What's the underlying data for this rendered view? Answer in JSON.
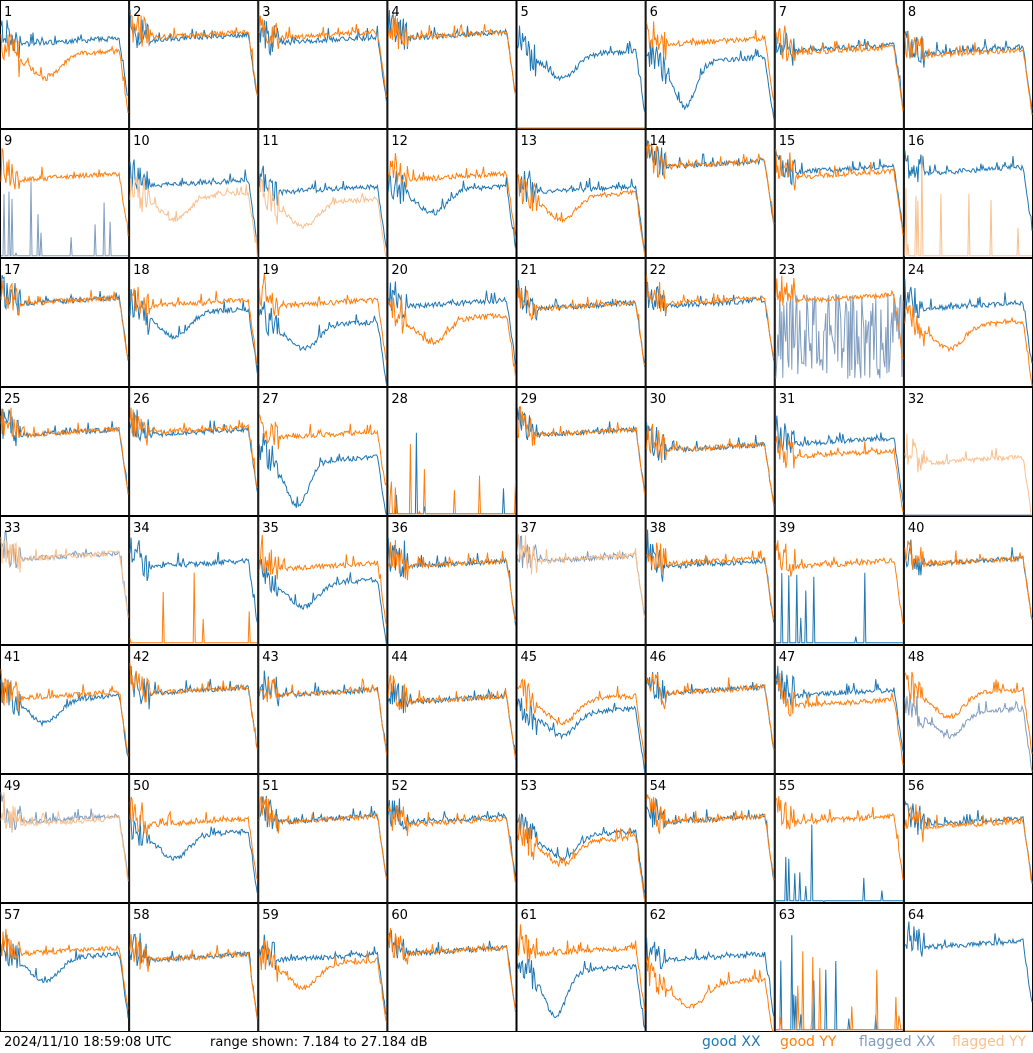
{
  "footer": {
    "timestamp": "2024/11/10 18:59:08 UTC",
    "range_text": "range shown: 7.184 to 27.184 dB"
  },
  "legend": [
    {
      "key": "good_xx",
      "label": "good XX",
      "color": "#1f77b4"
    },
    {
      "key": "good_yy",
      "label": "good YY",
      "color": "#ff7f0e"
    },
    {
      "key": "flagged_xx",
      "label": "flagged XX",
      "color": "#7f9cbf"
    },
    {
      "key": "flagged_yy",
      "label": "flagged YY",
      "color": "#f9c08d"
    }
  ],
  "chart_data": {
    "type": "line",
    "layout": "8x8 small multiples",
    "ylim_db": [
      7.184,
      27.184
    ],
    "panels": [
      {
        "id": "1",
        "xx": "good",
        "yy": "good",
        "xx_shape": "flat",
        "yy_shape": "dip",
        "xx_level": 0.65,
        "yy_level": 0.55
      },
      {
        "id": "2",
        "xx": "good",
        "yy": "good",
        "xx_shape": "flat",
        "yy_shape": "flat",
        "xx_level": 0.68,
        "yy_level": 0.7
      },
      {
        "id": "3",
        "xx": "good",
        "yy": "good",
        "xx_shape": "flat",
        "yy_shape": "flat",
        "xx_level": 0.66,
        "yy_level": 0.7
      },
      {
        "id": "4",
        "xx": "good",
        "yy": "good",
        "xx_shape": "flat",
        "yy_shape": "flat",
        "xx_level": 0.7,
        "yy_level": 0.7
      },
      {
        "id": "5",
        "xx": "good",
        "yy": "good",
        "xx_shape": "dip",
        "yy_shape": "zero",
        "xx_level": 0.55,
        "yy_level": 0
      },
      {
        "id": "6",
        "xx": "good",
        "yy": "good",
        "xx_shape": "deepdip",
        "yy_shape": "flat",
        "xx_level": 0.5,
        "yy_level": 0.65
      },
      {
        "id": "7",
        "xx": "good",
        "yy": "good",
        "xx_shape": "flat",
        "yy_shape": "flat",
        "xx_level": 0.6,
        "yy_level": 0.58
      },
      {
        "id": "8",
        "xx": "good",
        "yy": "good",
        "xx_shape": "flat",
        "yy_shape": "flat",
        "xx_level": 0.58,
        "yy_level": 0.56
      },
      {
        "id": "9",
        "xx": "flagged",
        "yy": "good",
        "xx_shape": "spikes",
        "yy_shape": "flat",
        "xx_level": 0.05,
        "yy_level": 0.6
      },
      {
        "id": "10",
        "xx": "good",
        "yy": "flagged",
        "xx_shape": "flat",
        "yy_shape": "dip",
        "xx_level": 0.55,
        "yy_level": 0.45
      },
      {
        "id": "11",
        "xx": "good",
        "yy": "flagged",
        "xx_shape": "flat",
        "yy_shape": "dip",
        "xx_level": 0.5,
        "yy_level": 0.4
      },
      {
        "id": "12",
        "xx": "good",
        "yy": "good",
        "xx_shape": "dip",
        "yy_shape": "flat",
        "xx_level": 0.5,
        "yy_level": 0.6
      },
      {
        "id": "13",
        "xx": "good",
        "yy": "good",
        "xx_shape": "flat",
        "yy_shape": "dip",
        "xx_level": 0.5,
        "yy_level": 0.45
      },
      {
        "id": "14",
        "xx": "good",
        "yy": "good",
        "xx_shape": "flat",
        "yy_shape": "flat",
        "xx_level": 0.7,
        "yy_level": 0.7
      },
      {
        "id": "15",
        "xx": "good",
        "yy": "good",
        "xx_shape": "flat",
        "yy_shape": "flat",
        "xx_level": 0.66,
        "yy_level": 0.62
      },
      {
        "id": "16",
        "xx": "good",
        "yy": "flagged",
        "xx_shape": "flat",
        "yy_shape": "spikes",
        "xx_level": 0.65,
        "yy_level": 0.02
      },
      {
        "id": "17",
        "xx": "good",
        "yy": "good",
        "xx_shape": "flat",
        "yy_shape": "flat",
        "xx_level": 0.64,
        "yy_level": 0.64
      },
      {
        "id": "18",
        "xx": "good",
        "yy": "good",
        "xx_shape": "dip",
        "yy_shape": "flat",
        "xx_level": 0.55,
        "yy_level": 0.62
      },
      {
        "id": "19",
        "xx": "good",
        "yy": "good",
        "xx_shape": "dip",
        "yy_shape": "flat",
        "xx_level": 0.45,
        "yy_level": 0.62
      },
      {
        "id": "20",
        "xx": "good",
        "yy": "good",
        "xx_shape": "flat",
        "yy_shape": "dip",
        "xx_level": 0.62,
        "yy_level": 0.5
      },
      {
        "id": "21",
        "xx": "good",
        "yy": "good",
        "xx_shape": "flat",
        "yy_shape": "flat",
        "xx_level": 0.6,
        "yy_level": 0.6
      },
      {
        "id": "22",
        "xx": "good",
        "yy": "good",
        "xx_shape": "flat",
        "yy_shape": "flat",
        "xx_level": 0.62,
        "yy_level": 0.64
      },
      {
        "id": "23",
        "xx": "flagged",
        "yy": "good",
        "xx_shape": "noise",
        "yy_shape": "flat",
        "xx_level": 0.3,
        "yy_level": 0.66
      },
      {
        "id": "24",
        "xx": "good",
        "yy": "good",
        "xx_shape": "flat",
        "yy_shape": "dip",
        "xx_level": 0.6,
        "yy_level": 0.45
      },
      {
        "id": "25",
        "xx": "good",
        "yy": "good",
        "xx_shape": "flat",
        "yy_shape": "flat",
        "xx_level": 0.62,
        "yy_level": 0.62
      },
      {
        "id": "26",
        "xx": "good",
        "yy": "good",
        "xx_shape": "flat",
        "yy_shape": "flat",
        "xx_level": 0.62,
        "yy_level": 0.64
      },
      {
        "id": "27",
        "xx": "good",
        "yy": "good",
        "xx_shape": "deepdip",
        "yy_shape": "flat",
        "xx_level": 0.4,
        "yy_level": 0.6
      },
      {
        "id": "28",
        "xx": "good",
        "yy": "good",
        "xx_shape": "spikes",
        "yy_shape": "spikes",
        "xx_level": 0.02,
        "yy_level": 0.02
      },
      {
        "id": "29",
        "xx": "good",
        "yy": "good",
        "xx_shape": "flat",
        "yy_shape": "flat",
        "xx_level": 0.62,
        "yy_level": 0.62
      },
      {
        "id": "30",
        "xx": "good",
        "yy": "good",
        "xx_shape": "flat",
        "yy_shape": "flat",
        "xx_level": 0.5,
        "yy_level": 0.5
      },
      {
        "id": "31",
        "xx": "good",
        "yy": "good",
        "xx_shape": "flat",
        "yy_shape": "flat",
        "xx_level": 0.55,
        "yy_level": 0.45
      },
      {
        "id": "32",
        "xx": "flagged",
        "yy": "flagged",
        "xx_shape": "zero",
        "yy_shape": "flat",
        "xx_level": 0,
        "yy_level": 0.4
      },
      {
        "id": "33",
        "xx": "flagged",
        "yy": "flagged",
        "xx_shape": "flat",
        "yy_shape": "flat",
        "xx_level": 0.66,
        "yy_level": 0.66
      },
      {
        "id": "34",
        "xx": "good",
        "yy": "good",
        "xx_shape": "flat",
        "yy_shape": "spikes",
        "xx_level": 0.6,
        "yy_level": 0.02
      },
      {
        "id": "35",
        "xx": "good",
        "yy": "good",
        "xx_shape": "dip",
        "yy_shape": "flat",
        "xx_level": 0.45,
        "yy_level": 0.58
      },
      {
        "id": "36",
        "xx": "good",
        "yy": "good",
        "xx_shape": "flat",
        "yy_shape": "flat",
        "xx_level": 0.6,
        "yy_level": 0.6
      },
      {
        "id": "37",
        "xx": "flagged",
        "yy": "flagged",
        "xx_shape": "flat",
        "yy_shape": "flat",
        "xx_level": 0.64,
        "yy_level": 0.64
      },
      {
        "id": "38",
        "xx": "good",
        "yy": "good",
        "xx_shape": "flat",
        "yy_shape": "flat",
        "xx_level": 0.6,
        "yy_level": 0.62
      },
      {
        "id": "39",
        "xx": "good",
        "yy": "good",
        "xx_shape": "spikes",
        "yy_shape": "flat",
        "xx_level": 0.02,
        "yy_level": 0.6
      },
      {
        "id": "40",
        "xx": "good",
        "yy": "good",
        "xx_shape": "flat",
        "yy_shape": "flat",
        "xx_level": 0.62,
        "yy_level": 0.62
      },
      {
        "id": "41",
        "xx": "good",
        "yy": "good",
        "xx_shape": "dip",
        "yy_shape": "flat",
        "xx_level": 0.55,
        "yy_level": 0.58
      },
      {
        "id": "42",
        "xx": "good",
        "yy": "good",
        "xx_shape": "flat",
        "yy_shape": "flat",
        "xx_level": 0.62,
        "yy_level": 0.62
      },
      {
        "id": "43",
        "xx": "good",
        "yy": "good",
        "xx_shape": "flat",
        "yy_shape": "flat",
        "xx_level": 0.6,
        "yy_level": 0.6
      },
      {
        "id": "44",
        "xx": "good",
        "yy": "good",
        "xx_shape": "flat",
        "yy_shape": "flat",
        "xx_level": 0.55,
        "yy_level": 0.55
      },
      {
        "id": "45",
        "xx": "good",
        "yy": "good",
        "xx_shape": "dip",
        "yy_shape": "dip",
        "xx_level": 0.45,
        "yy_level": 0.55
      },
      {
        "id": "46",
        "xx": "good",
        "yy": "good",
        "xx_shape": "flat",
        "yy_shape": "flat",
        "xx_level": 0.62,
        "yy_level": 0.62
      },
      {
        "id": "47",
        "xx": "good",
        "yy": "good",
        "xx_shape": "flat",
        "yy_shape": "flat",
        "xx_level": 0.6,
        "yy_level": 0.52
      },
      {
        "id": "48",
        "xx": "flagged",
        "yy": "good",
        "xx_shape": "dip",
        "yy_shape": "dip",
        "xx_level": 0.45,
        "yy_level": 0.6
      },
      {
        "id": "49",
        "xx": "flagged",
        "yy": "flagged",
        "xx_shape": "flat",
        "yy_shape": "flat",
        "xx_level": 0.62,
        "yy_level": 0.6
      },
      {
        "id": "50",
        "xx": "good",
        "yy": "good",
        "xx_shape": "dip",
        "yy_shape": "flat",
        "xx_level": 0.5,
        "yy_level": 0.6
      },
      {
        "id": "51",
        "xx": "good",
        "yy": "good",
        "xx_shape": "flat",
        "yy_shape": "flat",
        "xx_level": 0.62,
        "yy_level": 0.62
      },
      {
        "id": "52",
        "xx": "good",
        "yy": "good",
        "xx_shape": "flat",
        "yy_shape": "flat",
        "xx_level": 0.62,
        "yy_level": 0.6
      },
      {
        "id": "53",
        "xx": "good",
        "yy": "good",
        "xx_shape": "dip",
        "yy_shape": "dip",
        "xx_level": 0.5,
        "yy_level": 0.45
      },
      {
        "id": "54",
        "xx": "good",
        "yy": "good",
        "xx_shape": "flat",
        "yy_shape": "flat",
        "xx_level": 0.62,
        "yy_level": 0.62
      },
      {
        "id": "55",
        "xx": "good",
        "yy": "good",
        "xx_shape": "spikes",
        "yy_shape": "flat",
        "xx_level": 0.05,
        "yy_level": 0.62
      },
      {
        "id": "56",
        "xx": "good",
        "yy": "good",
        "xx_shape": "flat",
        "yy_shape": "flat",
        "xx_level": 0.6,
        "yy_level": 0.58
      },
      {
        "id": "57",
        "xx": "good",
        "yy": "good",
        "xx_shape": "dip",
        "yy_shape": "flat",
        "xx_level": 0.55,
        "yy_level": 0.6
      },
      {
        "id": "58",
        "xx": "good",
        "yy": "good",
        "xx_shape": "flat",
        "yy_shape": "flat",
        "xx_level": 0.55,
        "yy_level": 0.55
      },
      {
        "id": "59",
        "xx": "good",
        "yy": "good",
        "xx_shape": "flat",
        "yy_shape": "dip",
        "xx_level": 0.55,
        "yy_level": 0.5
      },
      {
        "id": "60",
        "xx": "good",
        "yy": "good",
        "xx_shape": "flat",
        "yy_shape": "flat",
        "xx_level": 0.6,
        "yy_level": 0.6
      },
      {
        "id": "61",
        "xx": "good",
        "yy": "good",
        "xx_shape": "deepdip",
        "yy_shape": "flat",
        "xx_level": 0.45,
        "yy_level": 0.6
      },
      {
        "id": "62",
        "xx": "good",
        "yy": "good",
        "xx_shape": "flat",
        "yy_shape": "dip",
        "xx_level": 0.55,
        "yy_level": 0.35
      },
      {
        "id": "63",
        "xx": "good",
        "yy": "good",
        "xx_shape": "spikes",
        "yy_shape": "spikes",
        "xx_level": 0.02,
        "yy_level": 0.02
      },
      {
        "id": "64",
        "xx": "good",
        "yy": "good",
        "xx_shape": "flat",
        "yy_shape": "zero",
        "xx_level": 0.65,
        "yy_level": 0
      }
    ]
  }
}
